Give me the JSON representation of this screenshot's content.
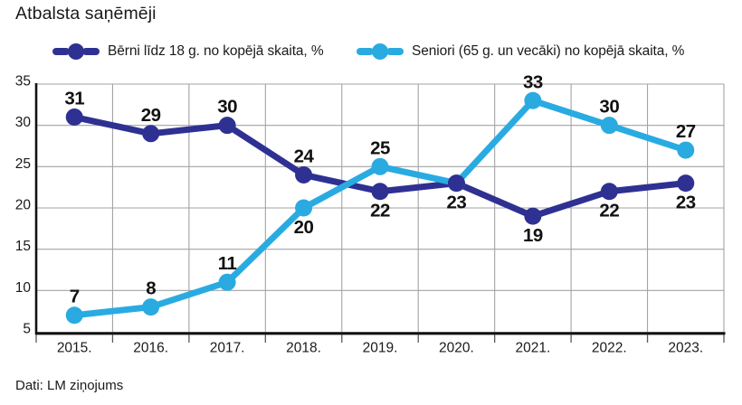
{
  "page": {
    "title": "Atbalsta saņēmēji",
    "source": "Dati: LM ziņojums"
  },
  "legend": {
    "items": [
      {
        "label": "Bērni līdz 18 g. no kopējā skaita, %",
        "color": "#2E3192"
      },
      {
        "label": "Seniori (65 g. un vecāki) no kopējā skaita, %",
        "color": "#29ABE2"
      }
    ]
  },
  "colors": {
    "axis": "#111111",
    "grid": "#a3a3a3",
    "tick": "#5a5a5a",
    "text": "#1a1a1a",
    "data_label": "#111111"
  },
  "chart_data": {
    "type": "line",
    "title": "Atbalsta saņēmēji",
    "categories": [
      "2015.",
      "2016.",
      "2017.",
      "2018.",
      "2019.",
      "2020.",
      "2021.",
      "2022.",
      "2023."
    ],
    "series": [
      {
        "name": "Bērni līdz 18 g. no kopējā skaita, %",
        "color": "#2E3192",
        "values": [
          31,
          29,
          30,
          24,
          22,
          23,
          19,
          22,
          23
        ],
        "label_positions": [
          "above",
          "above",
          "above",
          "above",
          "below",
          "below",
          "below",
          "below",
          "below"
        ]
      },
      {
        "name": "Seniori (65 g. un vecāki) no kopējā skaita, %",
        "color": "#29ABE2",
        "values": [
          7,
          8,
          11,
          20,
          25,
          23,
          33,
          30,
          27
        ],
        "label_positions": [
          "above",
          "above",
          "above",
          "below",
          "above",
          "none",
          "above",
          "above",
          "above"
        ]
      }
    ],
    "xlabel": "",
    "ylabel": "",
    "ylim": [
      5,
      35
    ],
    "yticks": [
      5,
      10,
      15,
      20,
      25,
      30,
      35
    ],
    "grid": true,
    "legend_position": "top",
    "source": "Dati: LM ziņojums"
  }
}
